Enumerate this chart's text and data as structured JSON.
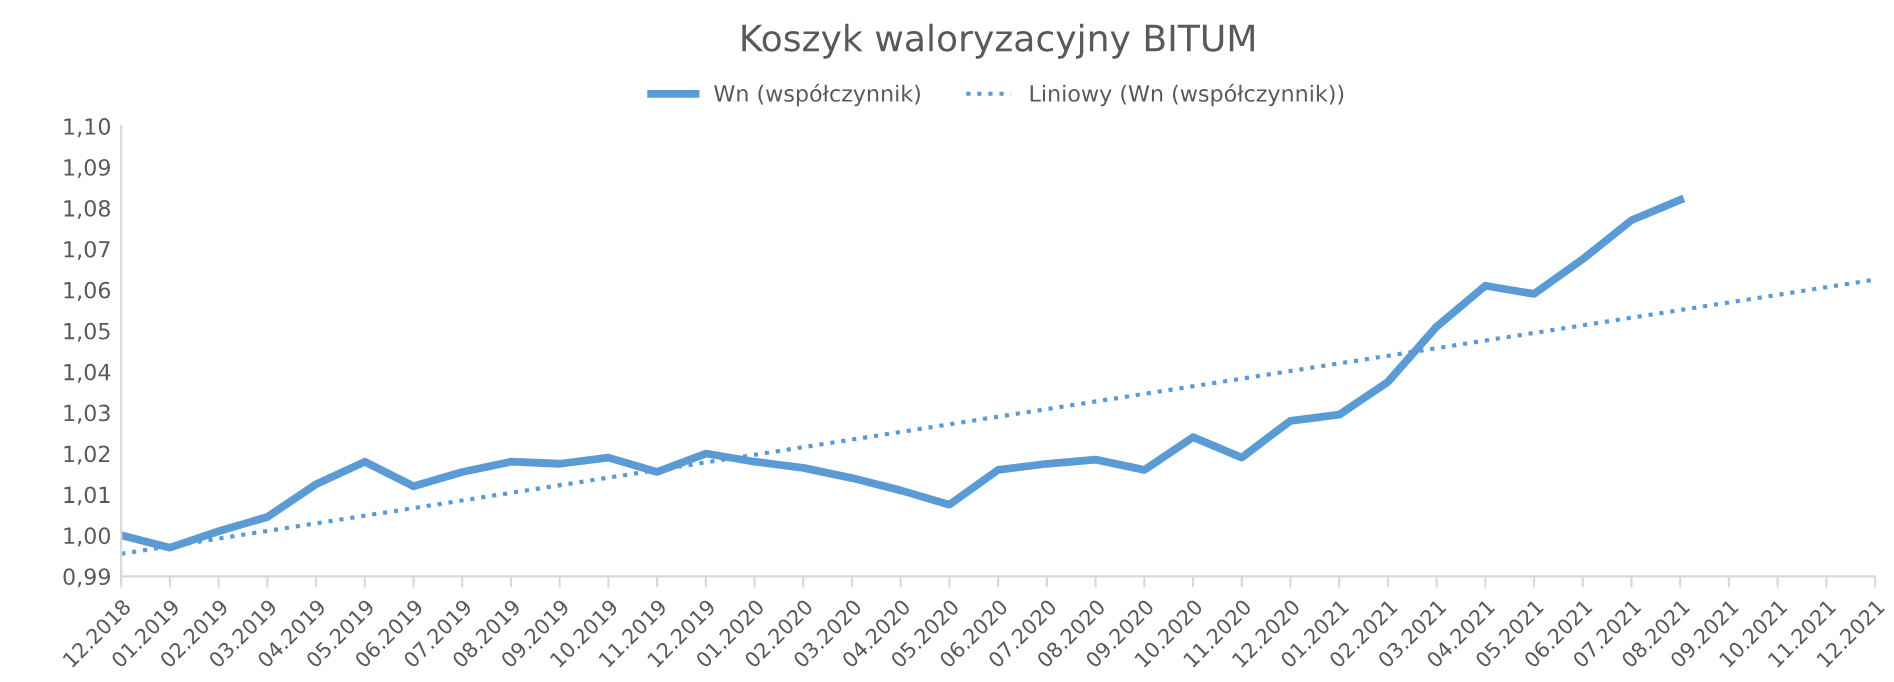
{
  "chart_data": {
    "type": "line",
    "title": "Koszyk waloryzacyjny BITUM",
    "categories": [
      "12.2018",
      "01.2019",
      "02.2019",
      "03.2019",
      "04.2019",
      "05.2019",
      "06.2019",
      "07.2019",
      "08.2019",
      "09.2019",
      "10.2019",
      "11.2019",
      "12.2019",
      "01.2020",
      "02.2020",
      "03.2020",
      "04.2020",
      "05.2020",
      "06.2020",
      "07.2020",
      "08.2020",
      "09.2020",
      "10.2020",
      "11.2020",
      "12.2020",
      "01.2021",
      "02.2021",
      "03.2021",
      "04.2021",
      "05.2021",
      "06.2021",
      "07.2021",
      "08.2021",
      "09.2021",
      "10.2021",
      "11.2021",
      "12.2021"
    ],
    "series": [
      {
        "name": "Wn (współczynnik)",
        "color": "#5b9bd5",
        "line_style": "solid",
        "values": [
          1.0,
          0.997,
          1.001,
          1.0045,
          1.0125,
          1.018,
          1.012,
          1.0155,
          1.018,
          1.0175,
          1.019,
          1.0155,
          1.02,
          1.018,
          1.0165,
          1.014,
          1.011,
          1.0075,
          1.016,
          1.0175,
          1.0185,
          1.016,
          1.024,
          1.019,
          1.028,
          1.0295,
          1.0375,
          1.051,
          1.061,
          1.059,
          1.0675,
          1.077,
          1.082,
          null,
          null,
          null,
          null
        ]
      },
      {
        "name": "Liniowy (Wn (współczynnik))",
        "color": "#5b9bd5",
        "line_style": "dotted",
        "x": [
          "12.2018",
          "12.2021"
        ],
        "values": [
          0.9955,
          1.0625
        ]
      }
    ],
    "ylim": [
      0.99,
      1.1
    ],
    "yticks": [
      {
        "value": 0.99,
        "label": "0,99"
      },
      {
        "value": 1.0,
        "label": "1,00"
      },
      {
        "value": 1.01,
        "label": "1,01"
      },
      {
        "value": 1.02,
        "label": "1,02"
      },
      {
        "value": 1.03,
        "label": "1,03"
      },
      {
        "value": 1.04,
        "label": "1,04"
      },
      {
        "value": 1.05,
        "label": "1,05"
      },
      {
        "value": 1.06,
        "label": "1,06"
      },
      {
        "value": 1.07,
        "label": "1,07"
      },
      {
        "value": 1.08,
        "label": "1,08"
      },
      {
        "value": 1.09,
        "label": "1,09"
      },
      {
        "value": 1.1,
        "label": "1,10"
      }
    ],
    "grid": false,
    "legend": "top",
    "marker": "none"
  }
}
